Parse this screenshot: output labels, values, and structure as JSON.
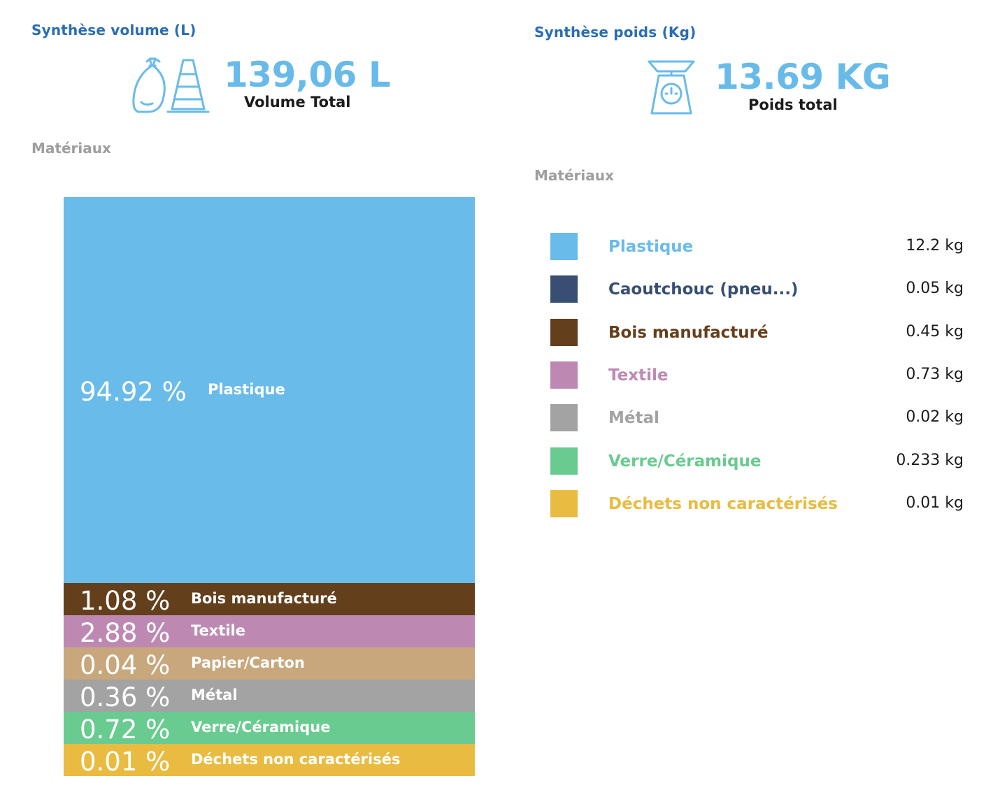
{
  "volume": {
    "title": "Synthèse volume (L)",
    "total": "139,06 L",
    "total_label": "Volume Total",
    "icon": "trash-bag-cone-icon",
    "subtitle": "Matériaux"
  },
  "poids": {
    "title": "Synthèse poids (Kg)",
    "total": "13.69 KG",
    "total_label": "Poids total",
    "icon": "kitchen-scale-icon",
    "subtitle": "Matériaux"
  },
  "chart_data": [
    {
      "type": "bar",
      "stacked": true,
      "orientation": "vertical-stack",
      "unit": "%",
      "segments": [
        {
          "name": "Plastique",
          "value": 94.92,
          "label": "94.92 %",
          "color": "#69bbea"
        },
        {
          "name": "Bois manufacturé",
          "value": 1.08,
          "label": "1.08 %",
          "color": "#643f1c"
        },
        {
          "name": "Textile",
          "value": 2.88,
          "label": "2.88 %",
          "color": "#bd89b3"
        },
        {
          "name": "Papier/Carton",
          "value": 0.04,
          "label": "0.04 %",
          "color": "#c8a77c"
        },
        {
          "name": "Métal",
          "value": 0.36,
          "label": "0.36 %",
          "color": "#a3a3a3"
        },
        {
          "name": "Verre/Céramique",
          "value": 0.72,
          "label": "0.72 %",
          "color": "#69cb90"
        },
        {
          "name": "Déchets non caractérisés",
          "value": 0.01,
          "label": "0.01 %",
          "color": "#e9bb40"
        }
      ]
    },
    {
      "type": "table",
      "unit": "kg",
      "rows": [
        {
          "name": "Plastique",
          "value": 12.2,
          "label": "12.2 kg",
          "color": "#69bbea"
        },
        {
          "name": "Caoutchouc (pneu...)",
          "value": 0.05,
          "label": "0.05 kg",
          "color": "#384f73"
        },
        {
          "name": "Bois manufacturé",
          "value": 0.45,
          "label": "0.45 kg",
          "color": "#643f1c"
        },
        {
          "name": "Textile",
          "value": 0.73,
          "label": "0.73 kg",
          "color": "#bd89b3"
        },
        {
          "name": "Métal",
          "value": 0.02,
          "label": "0.02 kg",
          "color": "#a3a3a3"
        },
        {
          "name": "Verre/Céramique",
          "value": 0.233,
          "label": "0.233 kg",
          "color": "#69cb90"
        },
        {
          "name": "Déchets non caractérisés",
          "value": 0.01,
          "label": "0.01 kg",
          "color": "#e9bb40"
        }
      ]
    }
  ]
}
